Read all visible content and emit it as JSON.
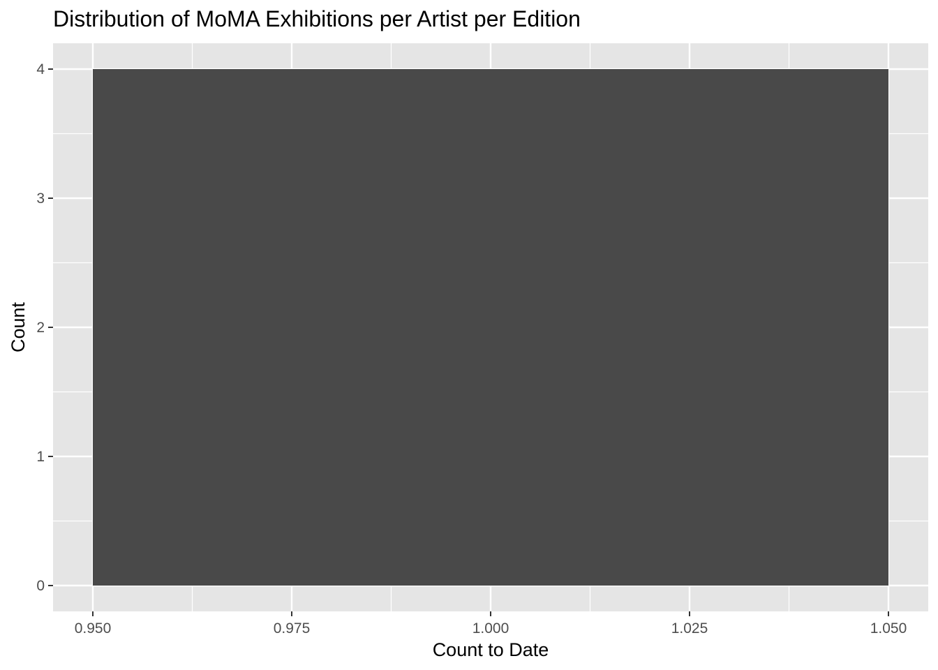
{
  "chart_data": {
    "type": "bar",
    "title": "Distribution of MoMA Exhibitions per Artist per Edition",
    "xlabel": "Count to Date",
    "ylabel": "Count",
    "bins": [
      {
        "x_start": 0.95,
        "x_end": 1.05,
        "count": 4
      }
    ],
    "xlim": [
      0.945,
      1.055
    ],
    "ylim": [
      -0.2,
      4.2
    ],
    "x_ticks": [
      0.95,
      0.975,
      1.0,
      1.025,
      1.05
    ],
    "x_tick_labels": [
      "0.950",
      "0.975",
      "1.000",
      "1.025",
      "1.050"
    ],
    "x_minor_ticks": [
      0.9625,
      0.9875,
      1.0125,
      1.0375
    ],
    "y_ticks": [
      0,
      1,
      2,
      3,
      4
    ],
    "y_tick_labels": [
      "0",
      "1",
      "2",
      "3",
      "4"
    ],
    "y_minor_ticks": [
      0.5,
      1.5,
      2.5,
      3.5
    ],
    "grid": true,
    "legend": "none",
    "colors": {
      "panel_background": "#e5e5e5",
      "grid": "#ffffff",
      "bar_fill": "#494949",
      "tick_text": "#4d4d4d",
      "tick_mark": "#333333"
    }
  }
}
